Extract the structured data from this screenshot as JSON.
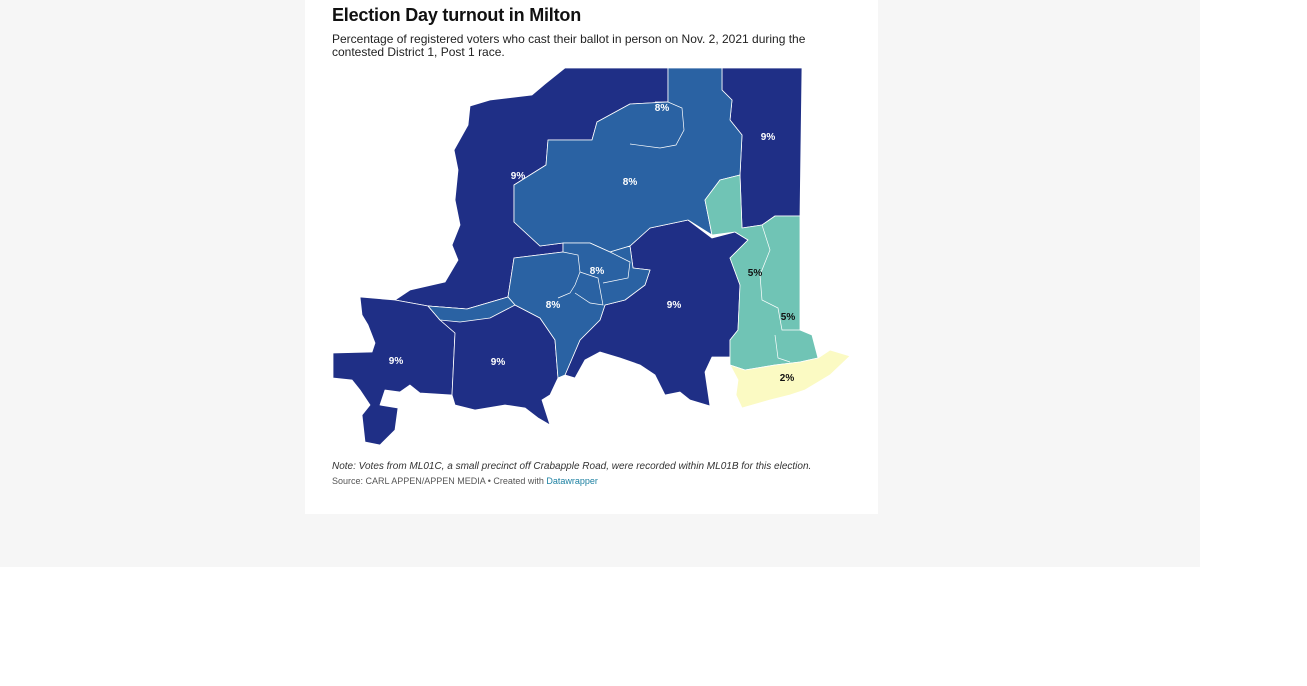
{
  "header": {
    "title": "Election Day turnout in Milton",
    "subtitle": "Percentage of registered voters who cast their ballot in person on Nov. 2, 2021 during the contested District 1, Post 1 race."
  },
  "map": {
    "colors": {
      "dark_blue": "#1f2f86",
      "mid_blue": "#2a62a3",
      "teal": "#70c4b5",
      "light_yellow": "#fbfac3",
      "boundary": "#ffffff"
    },
    "labels": [
      {
        "id": "p1",
        "text": "9%"
      },
      {
        "id": "p2",
        "text": "8%"
      },
      {
        "id": "p3",
        "text": "8%"
      },
      {
        "id": "p4",
        "text": "9%"
      },
      {
        "id": "p5",
        "text": "8%"
      },
      {
        "id": "p6",
        "text": "8%"
      },
      {
        "id": "p7",
        "text": "9%"
      },
      {
        "id": "p8",
        "text": "5%"
      },
      {
        "id": "p9",
        "text": "5%"
      },
      {
        "id": "p10",
        "text": "9%"
      },
      {
        "id": "p11",
        "text": "9%"
      },
      {
        "id": "p12",
        "text": "2%"
      }
    ]
  },
  "footer": {
    "note": "Note: Votes from ML01C, a small precinct off Crabapple Road, were recorded within ML01B for this election.",
    "source_prefix": "Source: CARL APPEN/APPEN MEDIA • Created with ",
    "source_link": "Datawrapper"
  }
}
